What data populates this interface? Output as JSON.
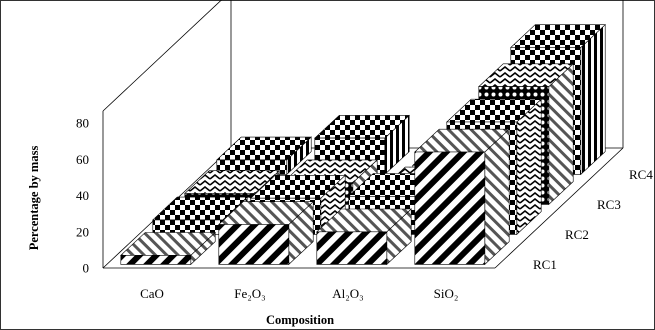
{
  "chart_data": {
    "type": "bar",
    "variant": "3d-grouped-depth",
    "categories": [
      "CaO",
      "Fe₂O₃",
      "Al₂O₃",
      "SiO₂"
    ],
    "series": [
      {
        "name": "RC1",
        "values": [
          5,
          22,
          18,
          62
        ]
      },
      {
        "name": "RC2",
        "values": [
          8,
          20,
          21,
          62
        ]
      },
      {
        "name": "RC3",
        "values": [
          6,
          12,
          8,
          65
        ]
      },
      {
        "name": "RC4",
        "values": [
          8,
          20,
          5,
          70
        ]
      }
    ],
    "title": "",
    "xlabel": "Composition",
    "ylabel": "Percentage by mass",
    "ylim": [
      0,
      80
    ],
    "yticks": [
      "0",
      "20",
      "40",
      "60",
      "80"
    ],
    "grid": false,
    "legend": "none"
  }
}
